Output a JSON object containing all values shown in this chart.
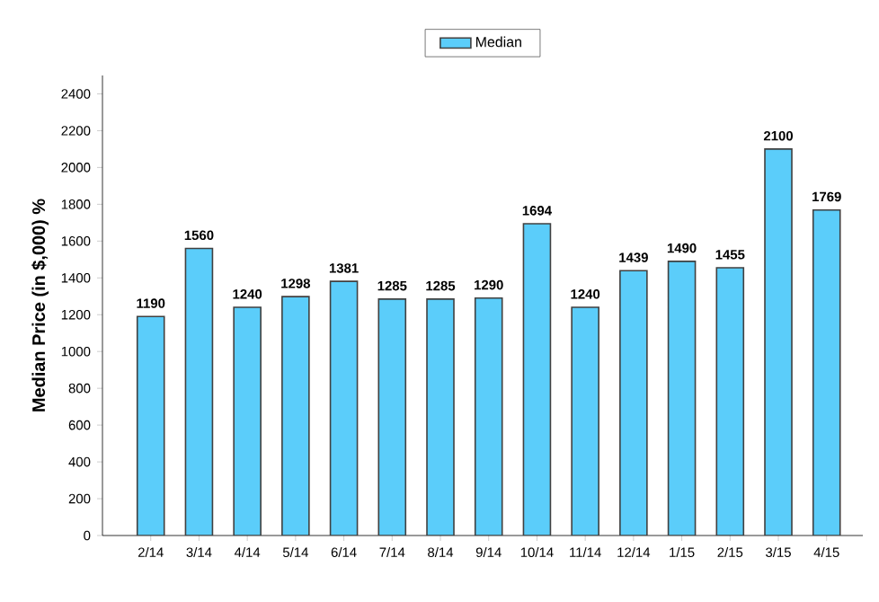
{
  "chart_data": {
    "type": "bar",
    "ylabel": "Median Price (in $,000) %",
    "categories": [
      "2/14",
      "3/14",
      "4/14",
      "5/14",
      "6/14",
      "7/14",
      "8/14",
      "9/14",
      "10/14",
      "11/14",
      "12/14",
      "1/15",
      "2/15",
      "3/15",
      "4/15"
    ],
    "series": [
      {
        "name": "Median",
        "color": "#5bcdfa",
        "values": [
          1190,
          1560,
          1240,
          1298,
          1381,
          1285,
          1285,
          1290,
          1694,
          1240,
          1439,
          1490,
          1455,
          2100,
          1769
        ]
      }
    ],
    "ylim": [
      0,
      2500
    ],
    "yticks": [
      0,
      200,
      400,
      600,
      800,
      1000,
      1200,
      1400,
      1600,
      1800,
      2000,
      2200,
      2400
    ],
    "data_labels": true,
    "legend": "top",
    "grid": false
  }
}
